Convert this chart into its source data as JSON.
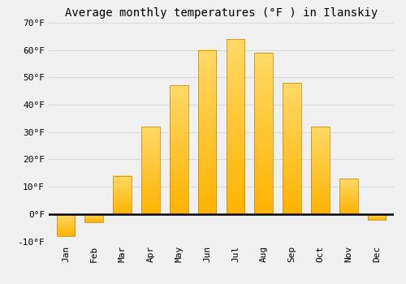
{
  "title": "Average monthly temperatures (°F ) in Ilanskiy",
  "months": [
    "Jan",
    "Feb",
    "Mar",
    "Apr",
    "May",
    "Jun",
    "Jul",
    "Aug",
    "Sep",
    "Oct",
    "Nov",
    "Dec"
  ],
  "values": [
    -8,
    -3,
    14,
    32,
    47,
    60,
    64,
    59,
    48,
    32,
    13,
    -2
  ],
  "bar_color_top": "#FFC733",
  "bar_color_bottom": "#FFB300",
  "bar_edge_color": "#B8860B",
  "ylim": [
    -10,
    70
  ],
  "yticks": [
    -10,
    0,
    10,
    20,
    30,
    40,
    50,
    60,
    70
  ],
  "background_color": "#F0F0F0",
  "grid_color": "#D8D8D8",
  "title_fontsize": 10,
  "tick_fontsize": 8,
  "font_family": "monospace"
}
